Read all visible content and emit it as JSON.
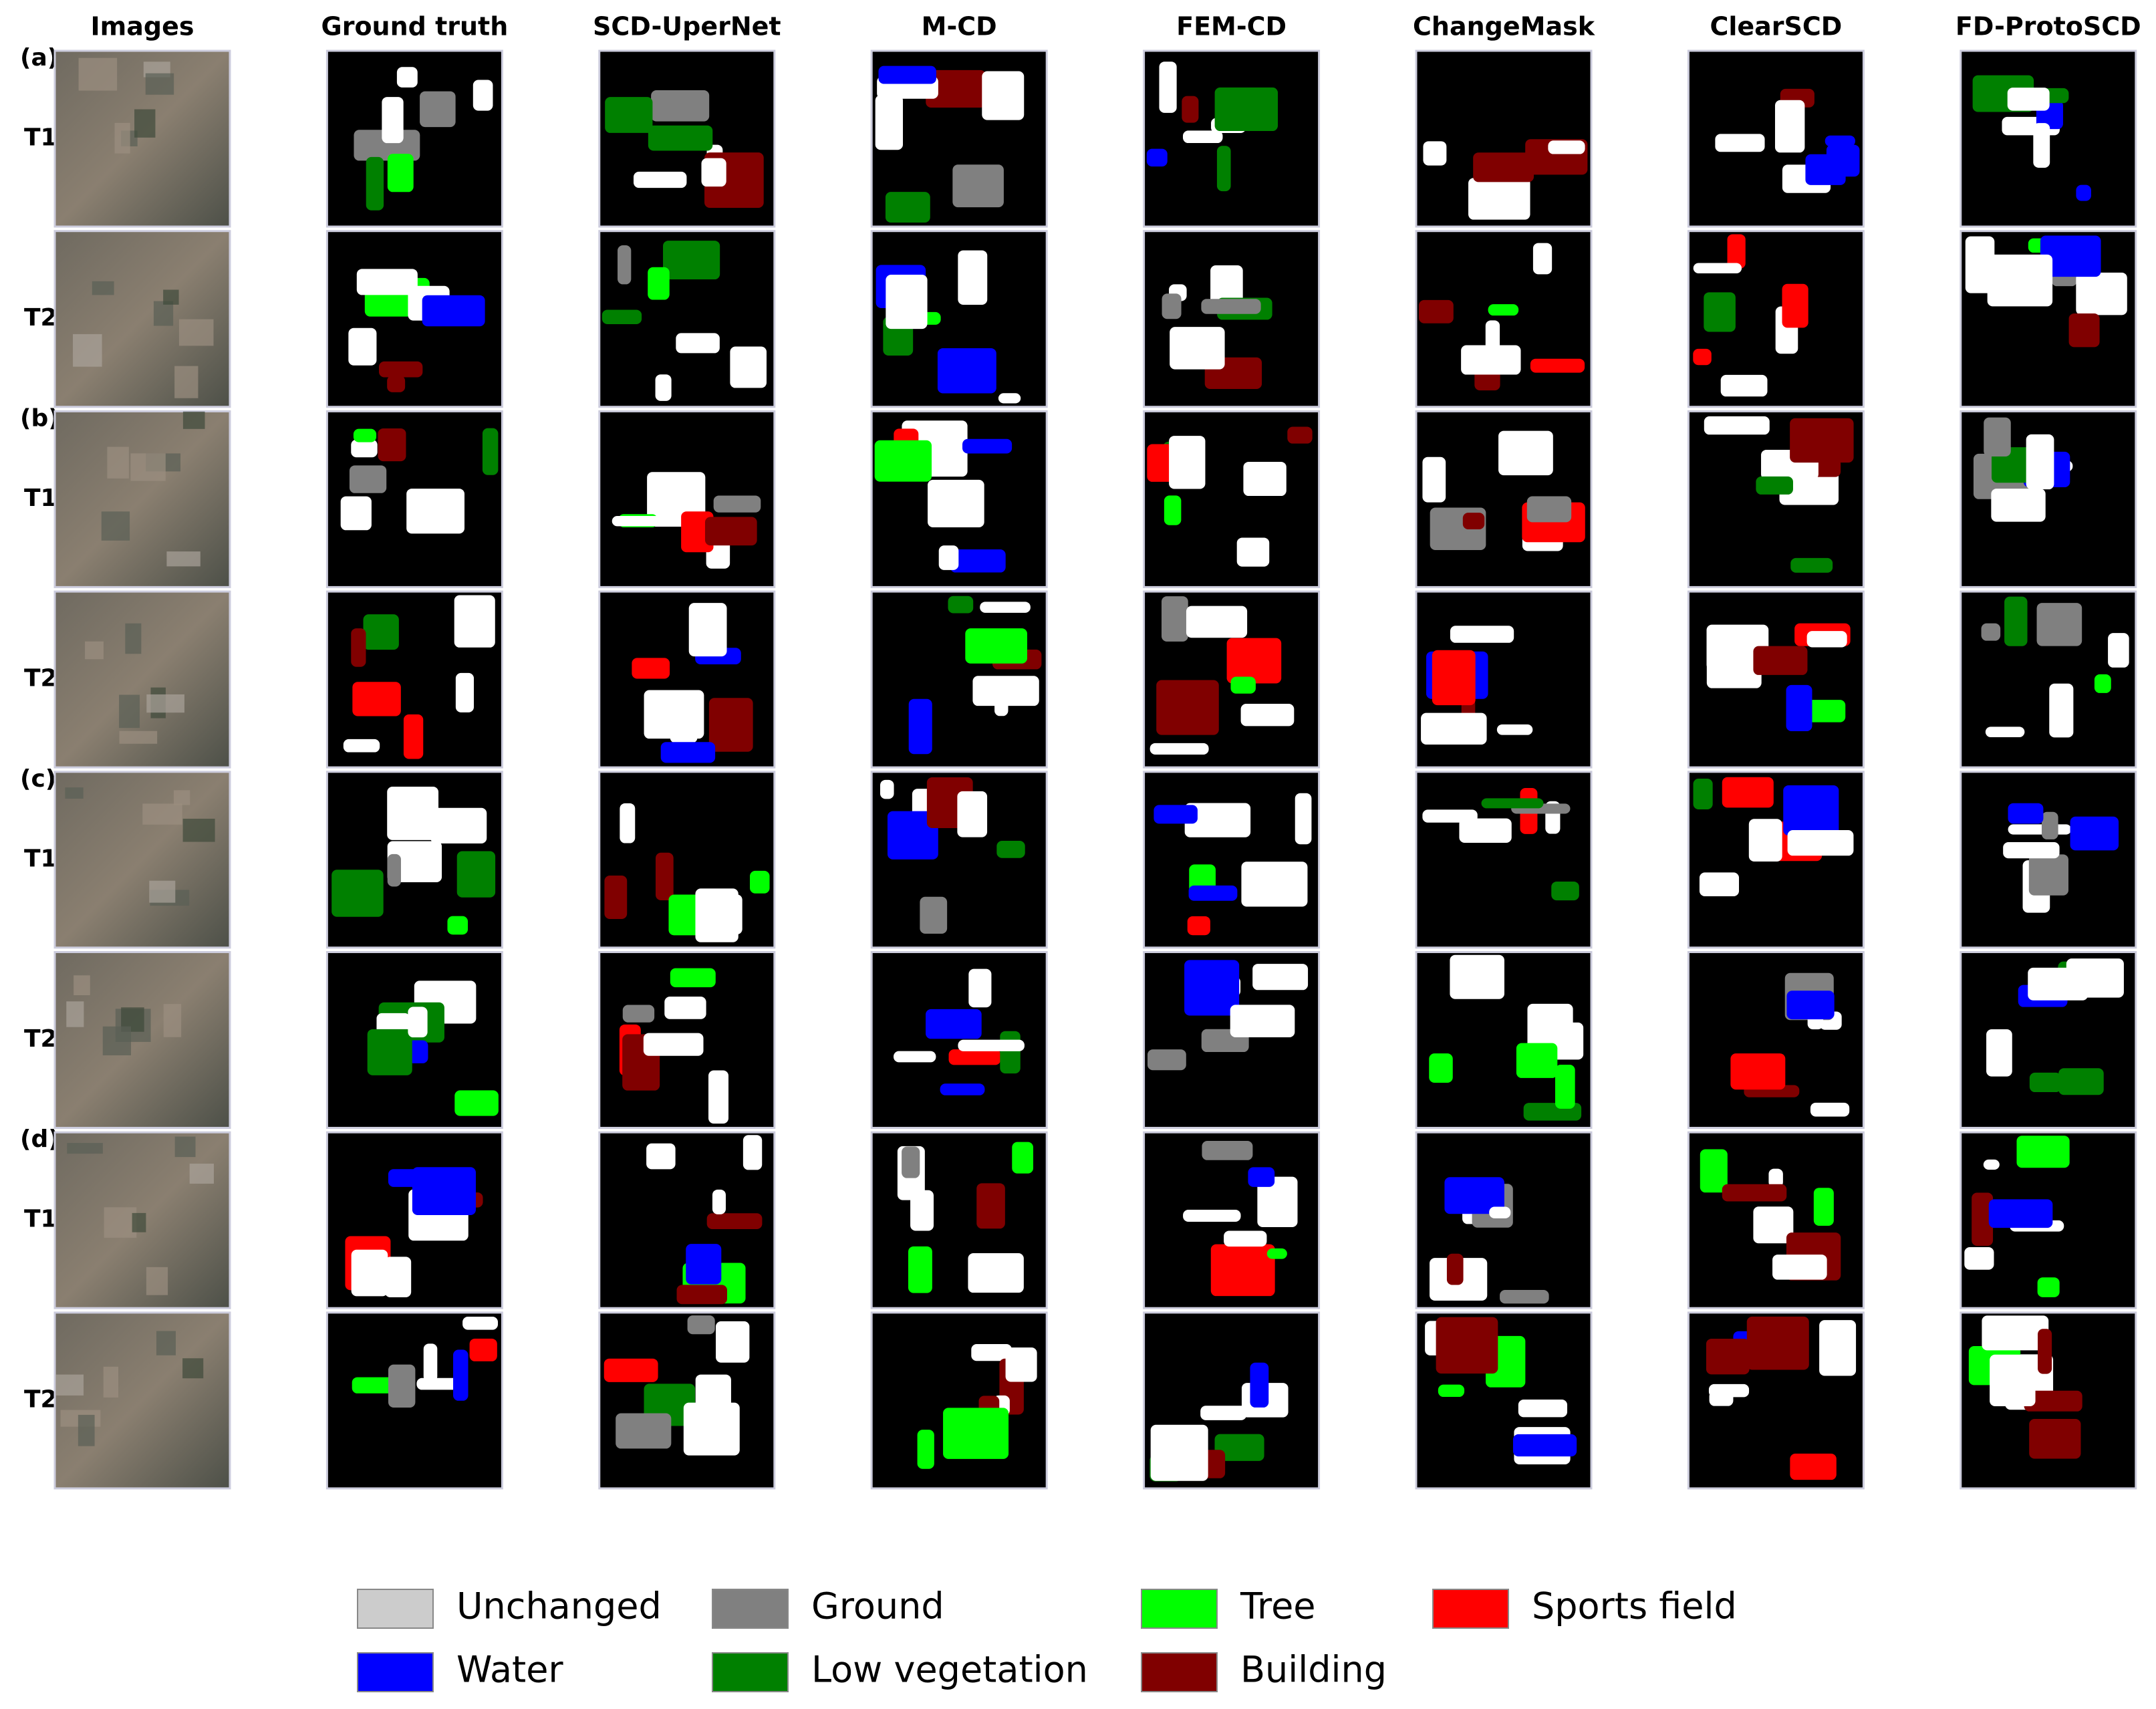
{
  "columns": [
    "Images",
    "Ground truth",
    "SCD-UperNet",
    "M-CD",
    "FEM-CD",
    "ChangeMask",
    "ClearSCD",
    "FD-ProtoSCD"
  ],
  "groups": [
    {
      "label": "(a)",
      "rows": [
        "T1",
        "T2"
      ]
    },
    {
      "label": "(b)",
      "rows": [
        "T1",
        "T2"
      ]
    },
    {
      "label": "(c)",
      "rows": [
        "T1",
        "T2"
      ]
    },
    {
      "label": "(d)",
      "rows": [
        "T1",
        "T2"
      ]
    }
  ],
  "legend": [
    {
      "name": "Unchanged",
      "color": "#cccccc"
    },
    {
      "name": "Water",
      "color": "#0000ff"
    },
    {
      "name": "Ground",
      "color": "#808080"
    },
    {
      "name": "Low vegetation",
      "color": "#008000"
    },
    {
      "name": "Tree",
      "color": "#00ff00"
    },
    {
      "name": "Building",
      "color": "#800000"
    },
    {
      "name": "Sports field",
      "color": "#ff0000"
    }
  ]
}
